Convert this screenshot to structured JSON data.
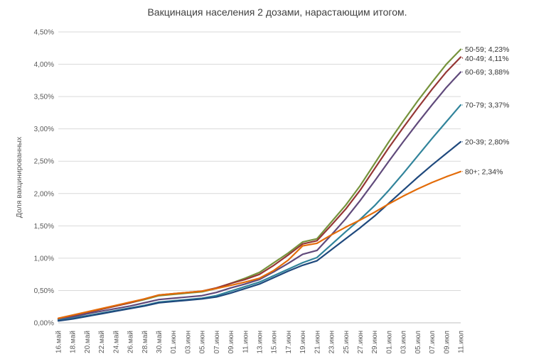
{
  "chart_data": {
    "type": "line",
    "title": "Вакцинация населения 2 дозами, нарастающим итогом.",
    "ylabel": "Доля вакцинированных",
    "xlabel": "",
    "ylim": [
      0,
      4.5
    ],
    "grid": true,
    "legend_position": "end-labels-right",
    "yticks": [
      {
        "value": 0.0,
        "label": "0,00%"
      },
      {
        "value": 0.5,
        "label": "0,50%"
      },
      {
        "value": 1.0,
        "label": "1,00%"
      },
      {
        "value": 1.5,
        "label": "1,50%"
      },
      {
        "value": 2.0,
        "label": "2,00%"
      },
      {
        "value": 2.5,
        "label": "2,50%"
      },
      {
        "value": 3.0,
        "label": "3,00%"
      },
      {
        "value": 3.5,
        "label": "3,50%"
      },
      {
        "value": 4.0,
        "label": "4,00%"
      },
      {
        "value": 4.5,
        "label": "4,50%"
      }
    ],
    "categories": [
      "16.май",
      "18.май",
      "20.май",
      "22.май",
      "24.май",
      "26.май",
      "28.май",
      "30.май",
      "01.июн",
      "03.июн",
      "05.июн",
      "07.июн",
      "09.июн",
      "11.июн",
      "13.июн",
      "15.июн",
      "17.июн",
      "19.июн",
      "21.июн",
      "23.июн",
      "25.июн",
      "27.июн",
      "29.июн",
      "01.июл",
      "03.июл",
      "05.июл",
      "07.июл",
      "09.июл",
      "11.июл"
    ],
    "series": [
      {
        "name": "50-59",
        "end_label": "50-59; 4,23%",
        "color": "#76933C",
        "values": [
          0.06,
          0.11,
          0.16,
          0.21,
          0.26,
          0.31,
          0.36,
          0.42,
          0.44,
          0.46,
          0.48,
          0.53,
          0.61,
          0.69,
          0.78,
          0.93,
          1.08,
          1.25,
          1.3,
          1.56,
          1.82,
          2.12,
          2.46,
          2.8,
          3.12,
          3.43,
          3.72,
          4.0,
          4.23
        ]
      },
      {
        "name": "40-49",
        "end_label": "40-49; 4,11%",
        "color": "#953735",
        "values": [
          0.06,
          0.11,
          0.16,
          0.21,
          0.26,
          0.31,
          0.37,
          0.43,
          0.45,
          0.47,
          0.49,
          0.54,
          0.61,
          0.67,
          0.75,
          0.89,
          1.05,
          1.22,
          1.27,
          1.51,
          1.76,
          2.05,
          2.38,
          2.71,
          3.02,
          3.32,
          3.61,
          3.88,
          4.11
        ]
      },
      {
        "name": "60-69",
        "end_label": "60-69; 3,88%",
        "color": "#604A7B",
        "values": [
          0.05,
          0.09,
          0.14,
          0.18,
          0.22,
          0.26,
          0.31,
          0.36,
          0.38,
          0.4,
          0.42,
          0.47,
          0.54,
          0.6,
          0.67,
          0.79,
          0.92,
          1.06,
          1.12,
          1.36,
          1.61,
          1.89,
          2.19,
          2.5,
          2.8,
          3.09,
          3.37,
          3.64,
          3.88
        ]
      },
      {
        "name": "70-79",
        "end_label": "70-79; 3,37%",
        "color": "#31849B",
        "values": [
          0.04,
          0.07,
          0.11,
          0.15,
          0.19,
          0.23,
          0.27,
          0.32,
          0.34,
          0.36,
          0.38,
          0.42,
          0.49,
          0.56,
          0.63,
          0.73,
          0.83,
          0.93,
          1.01,
          1.21,
          1.41,
          1.6,
          1.81,
          2.05,
          2.31,
          2.58,
          2.85,
          3.11,
          3.37
        ]
      },
      {
        "name": "20-39",
        "end_label": "20-39; 2,80%",
        "color": "#1F497D",
        "values": [
          0.03,
          0.06,
          0.1,
          0.14,
          0.18,
          0.22,
          0.26,
          0.31,
          0.33,
          0.35,
          0.37,
          0.4,
          0.46,
          0.53,
          0.6,
          0.7,
          0.8,
          0.89,
          0.96,
          1.13,
          1.3,
          1.47,
          1.65,
          1.85,
          2.05,
          2.25,
          2.44,
          2.62,
          2.8
        ]
      },
      {
        "name": "80+",
        "end_label": "80+; 2,34%",
        "color": "#E36C09",
        "values": [
          0.07,
          0.12,
          0.17,
          0.22,
          0.27,
          0.32,
          0.37,
          0.43,
          0.45,
          0.47,
          0.49,
          0.53,
          0.58,
          0.63,
          0.69,
          0.81,
          0.97,
          1.19,
          1.23,
          1.36,
          1.48,
          1.59,
          1.71,
          1.84,
          1.96,
          2.07,
          2.17,
          2.26,
          2.34
        ]
      }
    ],
    "style_colors": {
      "gridline": "#D9D9D9",
      "axis_line": "#BFBFBF",
      "tick_text": "#595959",
      "title_text": "#404040",
      "end_label_text": "#333333",
      "background": "#FFFFFF"
    }
  }
}
